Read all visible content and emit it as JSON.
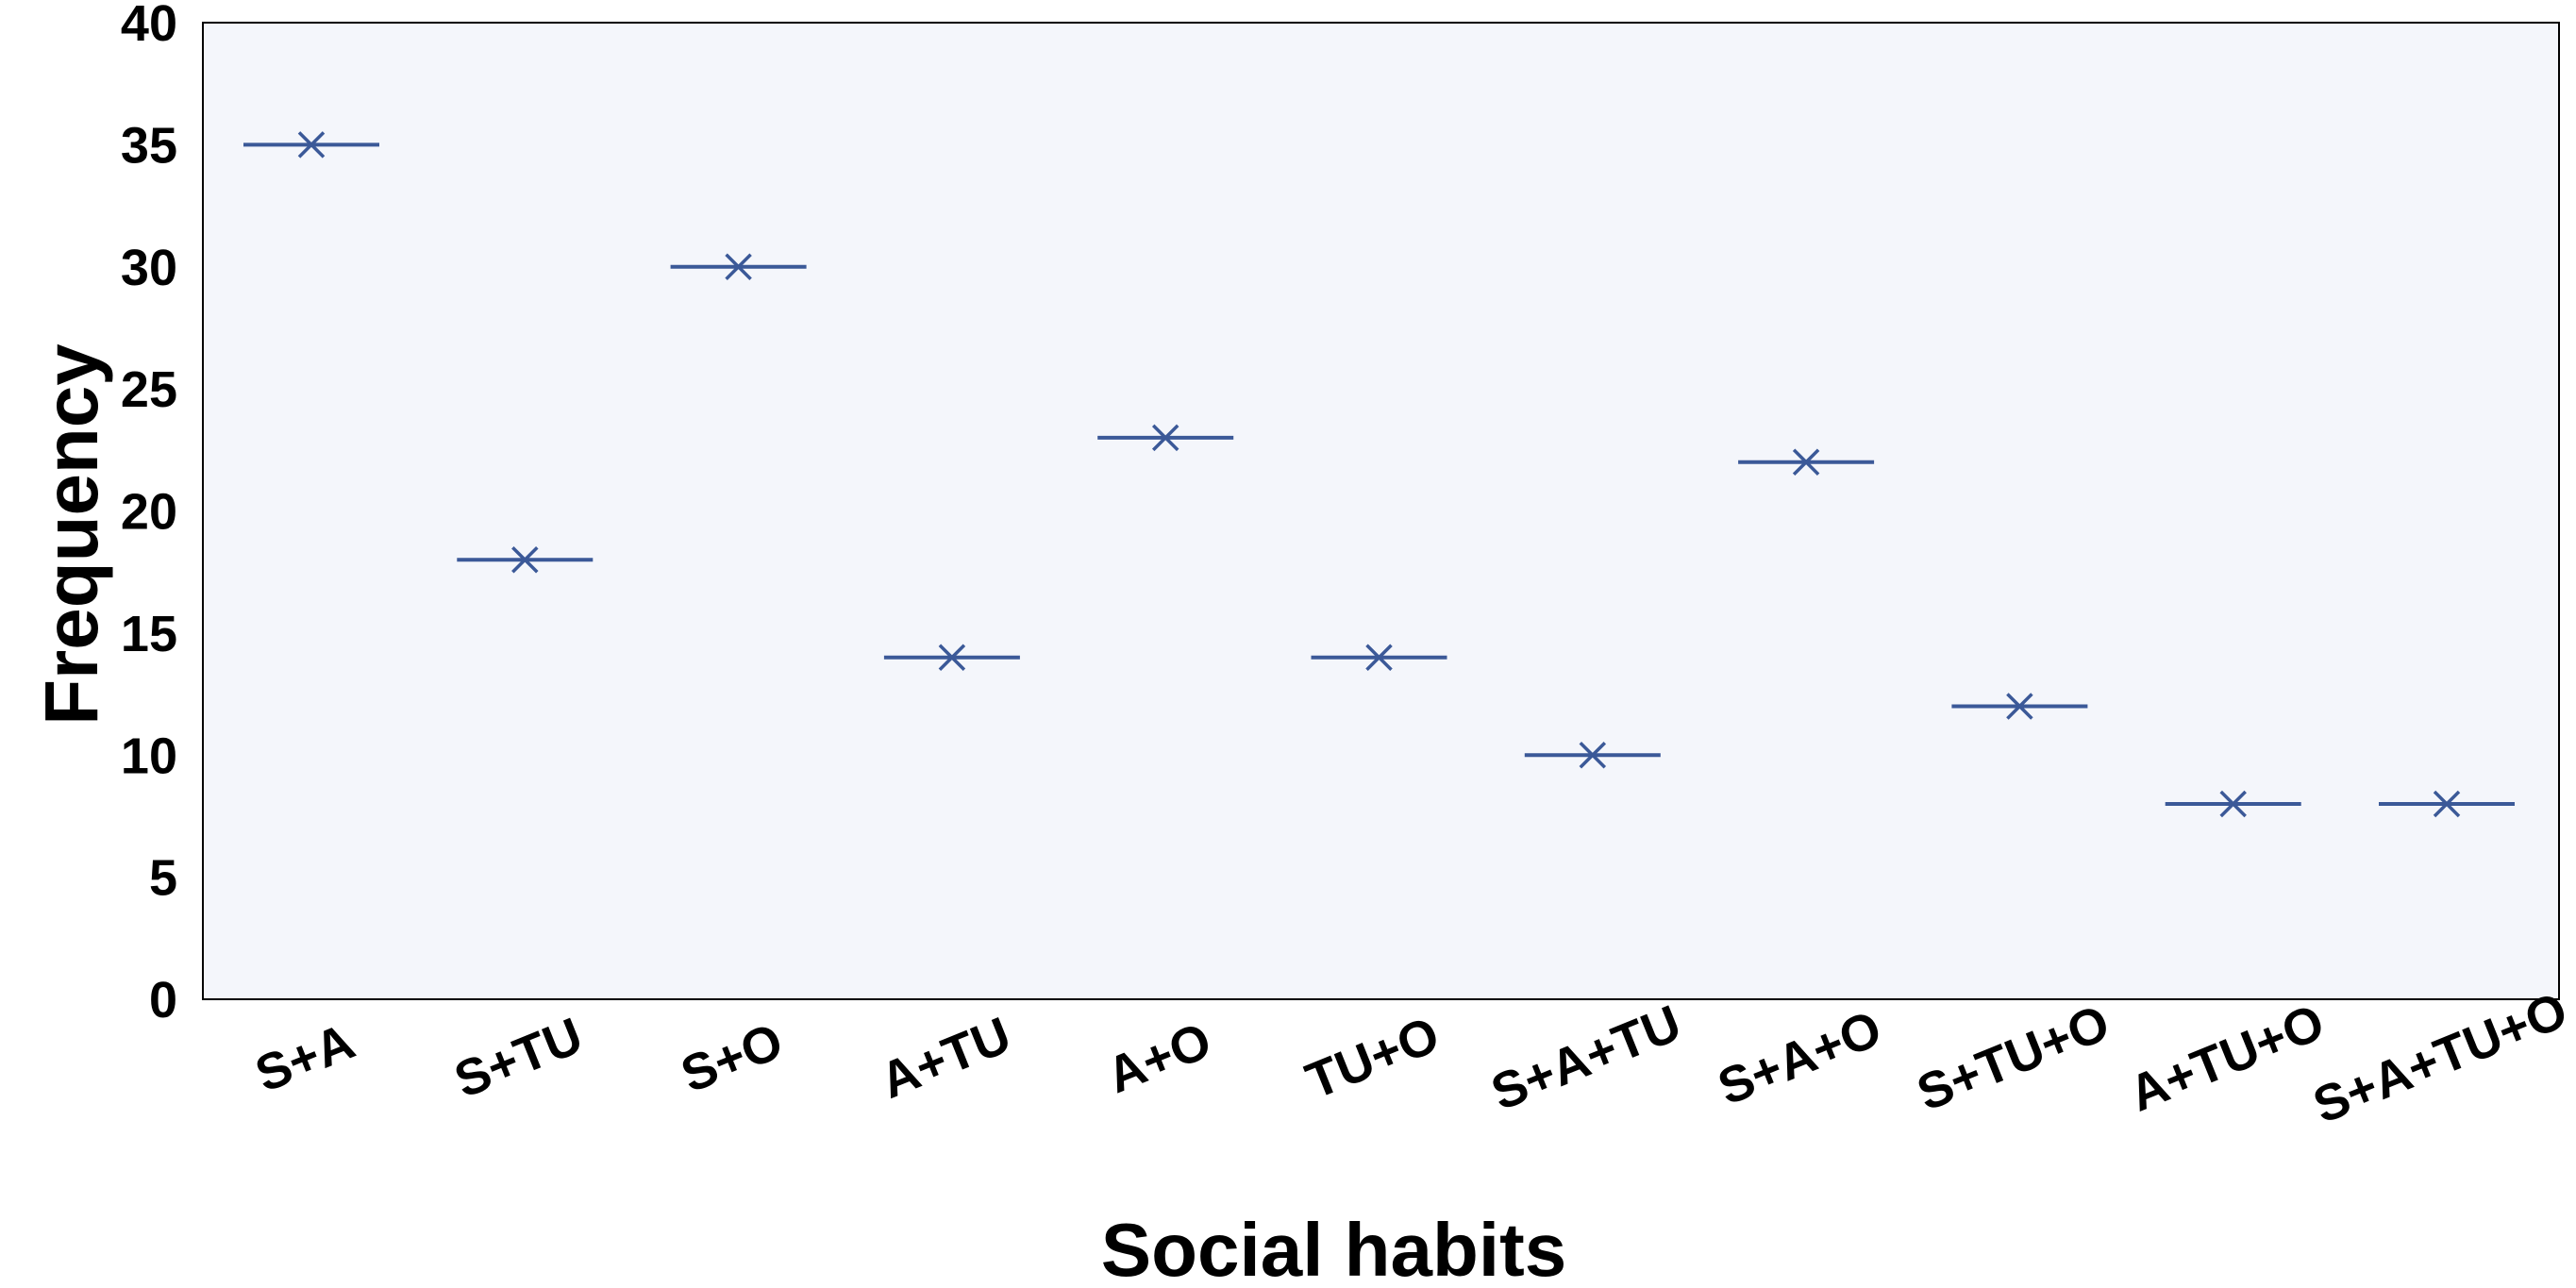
{
  "chart_data": {
    "type": "scatter",
    "marker": "x-with-horizontal-bar",
    "categories": [
      "S+A",
      "S+TU",
      "S+O",
      "A+TU",
      "A+O",
      "TU+O",
      "S+A+TU",
      "S+A+O",
      "S+TU+O",
      "A+TU+O",
      "S+A+TU+O"
    ],
    "values": [
      35,
      18,
      30,
      14,
      23,
      14,
      10,
      22,
      12,
      8,
      8
    ],
    "xlabel": "Social habits",
    "ylabel": "Frequency",
    "ylim": [
      0,
      40
    ],
    "yticks": [
      "0",
      "5",
      "10",
      "15",
      "20",
      "25",
      "30",
      "35",
      "40"
    ],
    "grid": false,
    "colors": {
      "series": "#3b5998",
      "plot_background": "#f4f6fb",
      "axis": "#000000"
    }
  }
}
